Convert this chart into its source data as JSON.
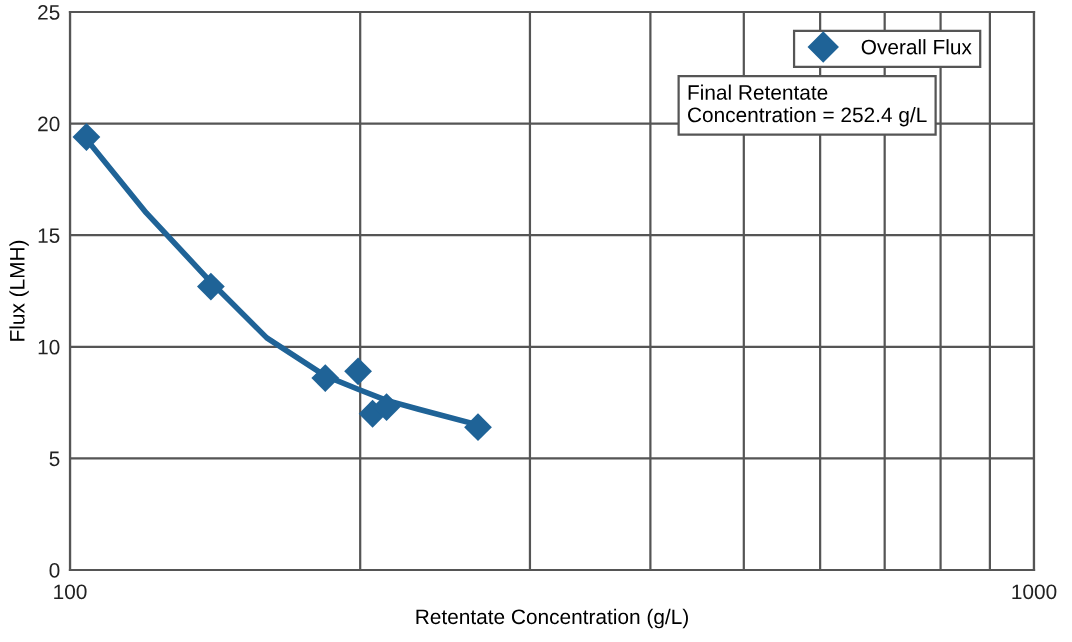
{
  "chart_data": {
    "type": "scatter",
    "xlabel": "Retentate Concentration (g/L)",
    "ylabel": "Flux (LMH)",
    "log": "x",
    "xlim": [
      100,
      1000
    ],
    "ylim": [
      0,
      25
    ],
    "xticks": [
      100,
      {
        "value": 200,
        "label": null
      },
      {
        "value": 300,
        "label": null
      },
      {
        "value": 400,
        "label": null
      },
      {
        "value": 500,
        "label": null
      },
      {
        "value": 600,
        "label": null
      },
      {
        "value": 700,
        "label": null
      },
      {
        "value": 800,
        "label": null
      },
      {
        "value": 900,
        "label": null
      },
      1000
    ],
    "yticks": [
      0,
      5,
      10,
      15,
      20,
      25
    ],
    "grid": true,
    "legend": "top right",
    "series": [
      {
        "name": "Overall Flux",
        "marker": "diamond",
        "color": "#1f6397",
        "x": [
          104,
          140,
          184,
          199,
          206,
          213,
          265
        ],
        "values": [
          19.4,
          12.7,
          8.6,
          8.9,
          7.0,
          7.3,
          6.4
        ]
      },
      {
        "type": "line",
        "marker": "none",
        "color": "#1f6397",
        "x": [
          104,
          120,
          140,
          160,
          184,
          199,
          213,
          230,
          265
        ],
        "values": [
          19.3,
          16.0,
          12.9,
          10.4,
          8.7,
          8.1,
          7.6,
          7.2,
          6.5
        ]
      }
    ],
    "annotations": [
      "Final Retentate\nConcentration = 252.4 g/L"
    ]
  }
}
